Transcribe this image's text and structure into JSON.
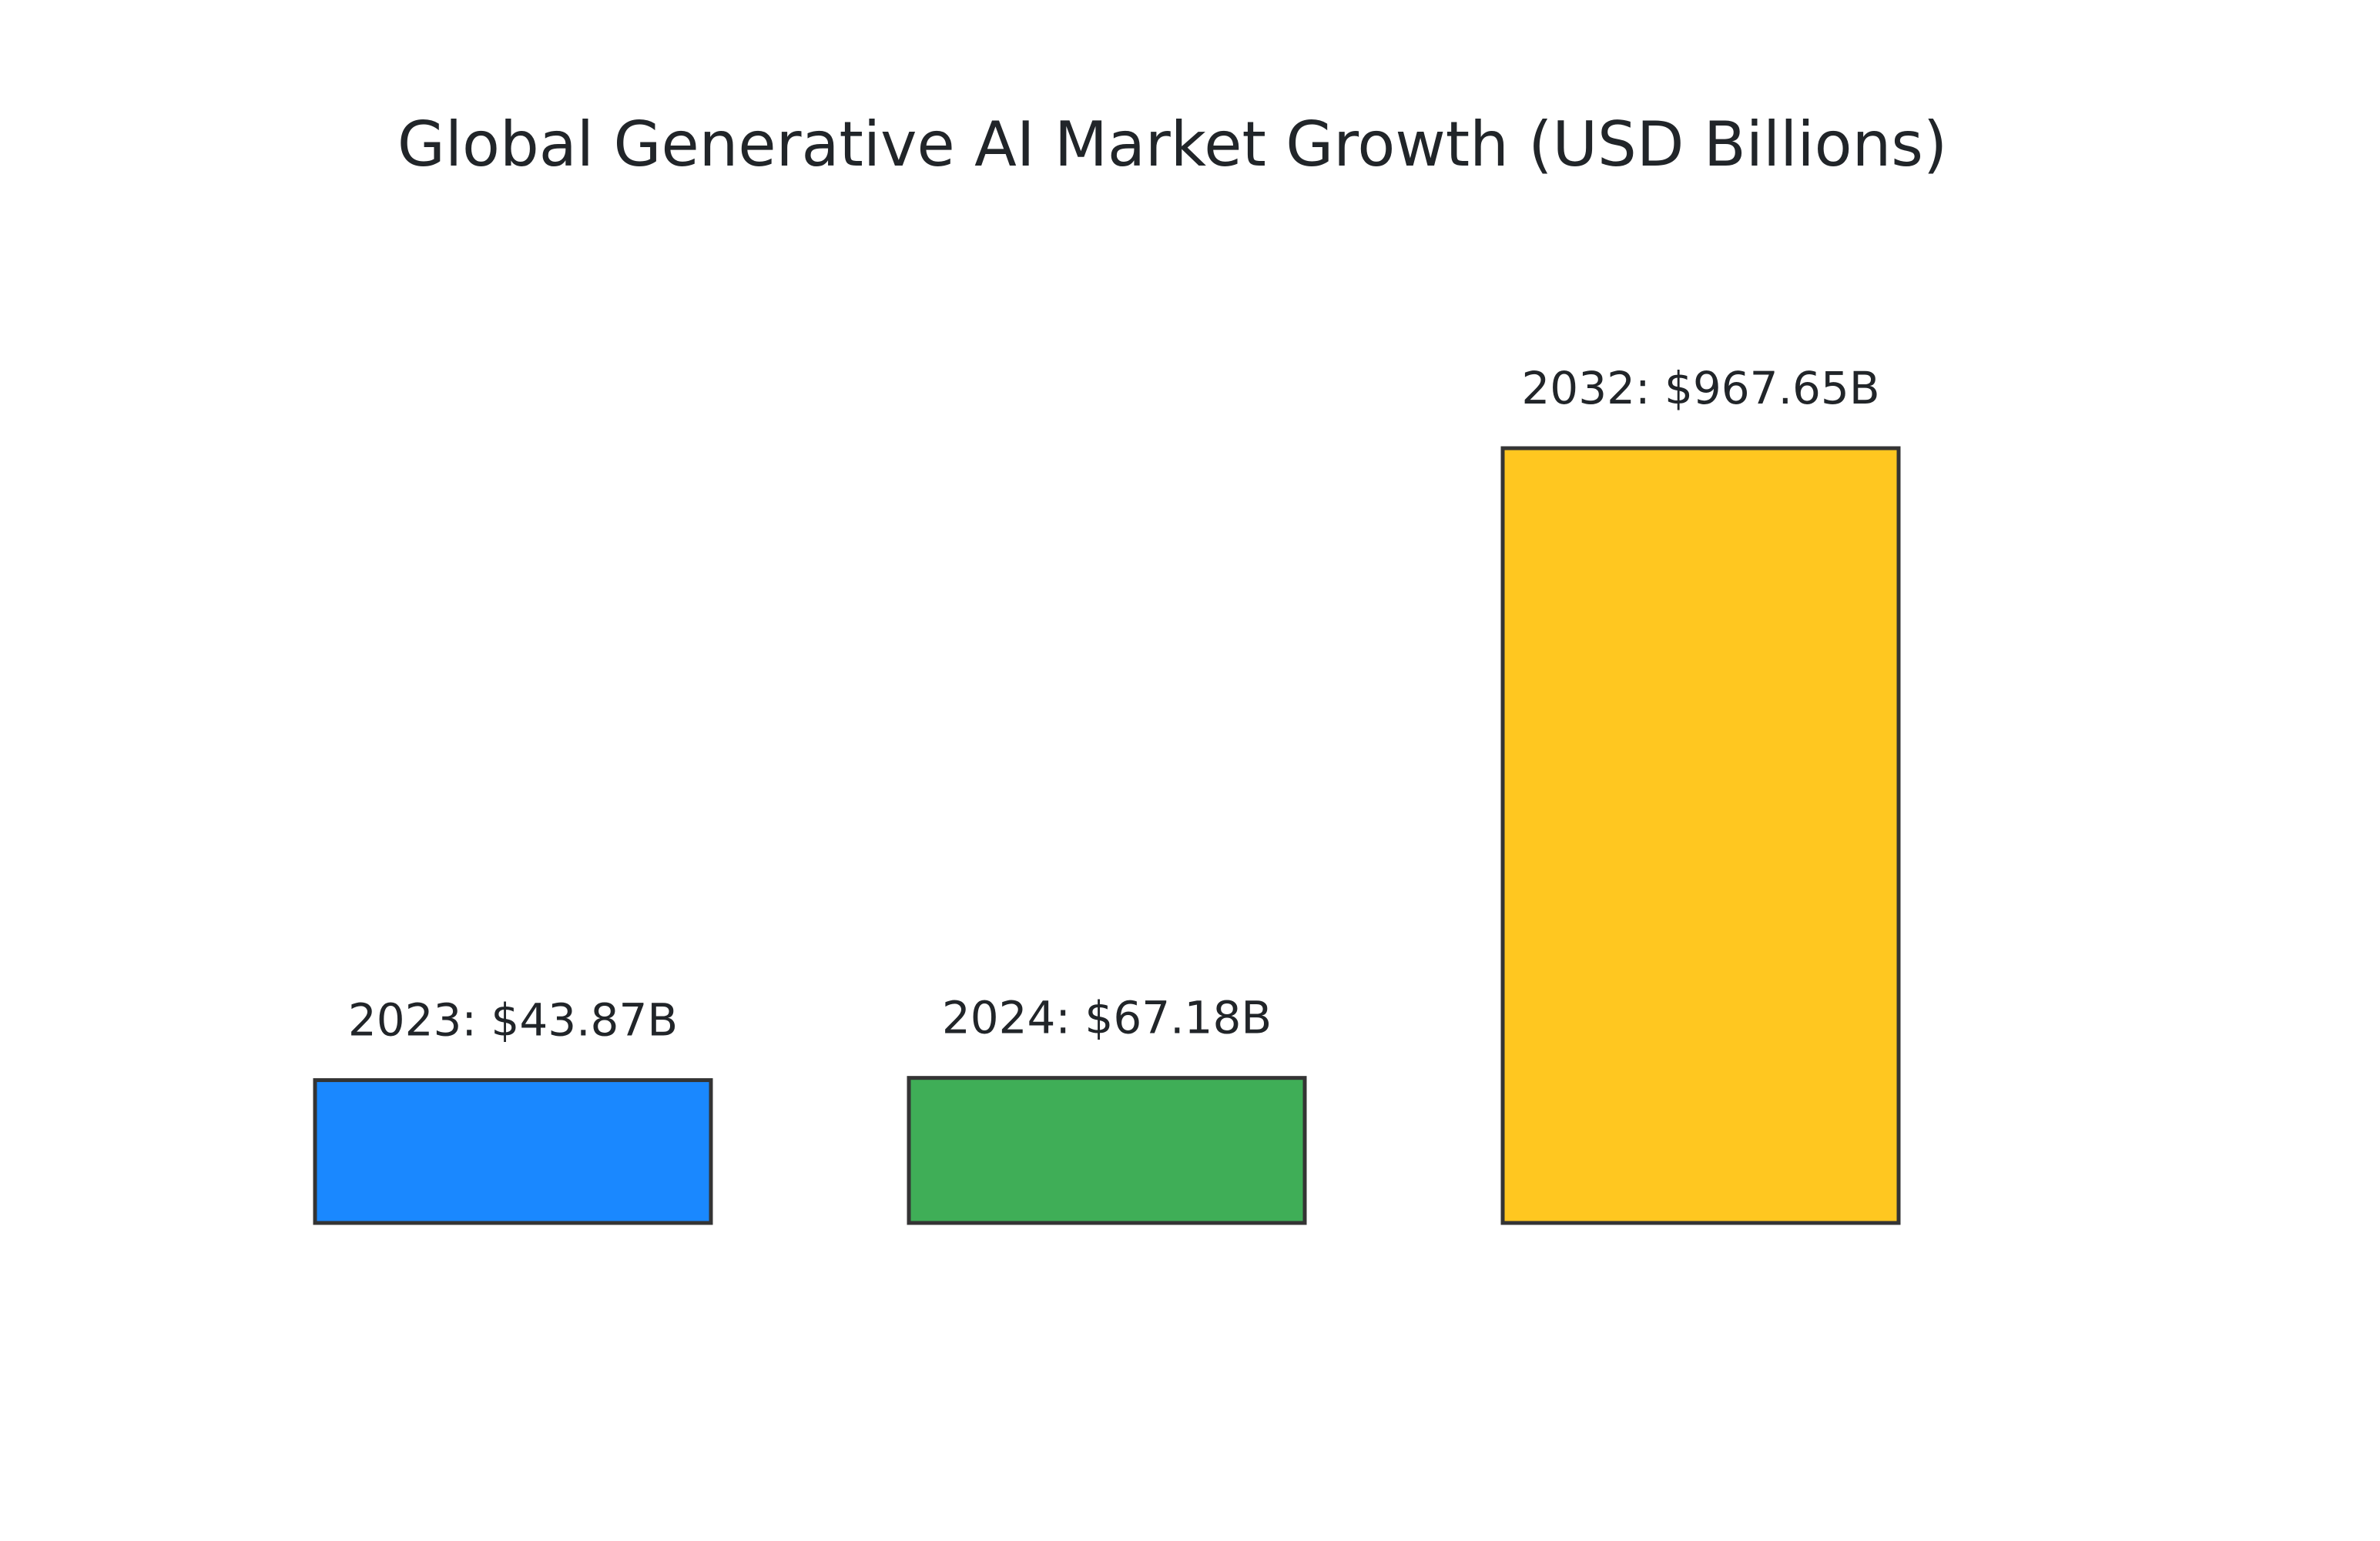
{
  "chart_data": {
    "type": "bar",
    "title": "Global Generative AI Market Growth (USD Billions)",
    "categories": [
      "2023",
      "2024",
      "2032"
    ],
    "values": [
      43.87,
      67.18,
      967.65
    ],
    "data_labels": [
      "2023: $43.87B",
      "2024: $67.18B",
      "2032: $967.65B"
    ],
    "colors": [
      "#1a88ff",
      "#3fae57",
      "#ffc720"
    ],
    "bar_outline_color": "#343434",
    "xlabel": "",
    "ylabel": "",
    "ylim": [
      0,
      967.65
    ],
    "grid": false,
    "axes_visible": false,
    "legend": "none"
  }
}
